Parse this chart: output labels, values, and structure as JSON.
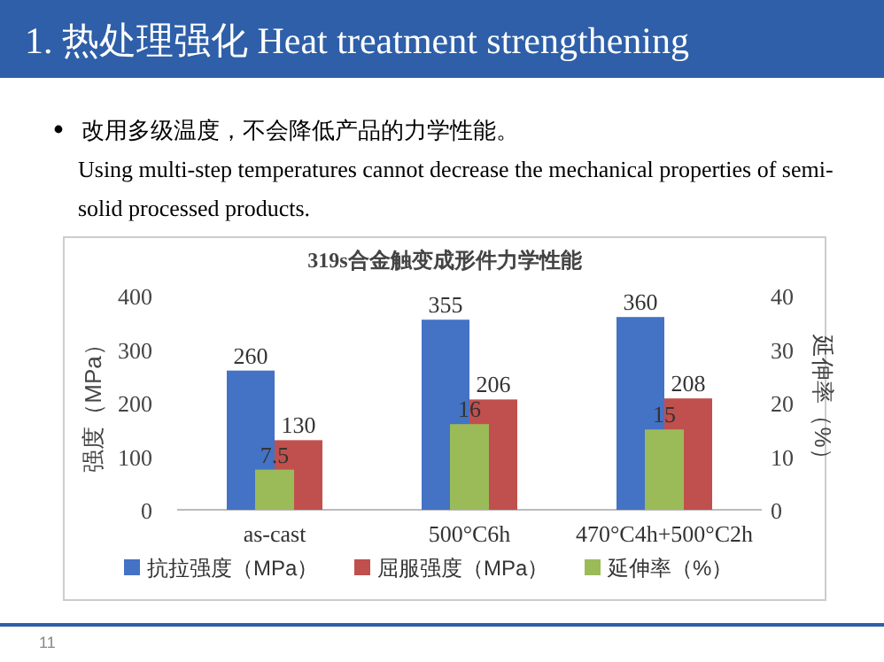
{
  "chart_data": {
    "type": "bar",
    "title": "319s合金触变成形件力学性能",
    "annotations": [
      "1. 热处理强化 Heat treatment strengthening",
      "改用多级温度，不会降低产品的力学性能。",
      "Using multi-step temperatures cannot decrease the mechanical properties of semi-solid processed products.",
      "11"
    ],
    "categories": [
      "as-cast",
      "500°C6h",
      "470°C4h+500°C2h"
    ],
    "series": [
      {
        "name": "抗拉强度（MPa）",
        "color": "#4472c4",
        "values": [
          260,
          355,
          360
        ]
      },
      {
        "name": "屈服强度（MPa）",
        "color": "#c0504d",
        "values": [
          130,
          206,
          208
        ]
      },
      {
        "name": "延伸率（%）",
        "color": "#9bbb59",
        "values": [
          7.5,
          16,
          15
        ],
        "axis": "y2"
      }
    ],
    "ylabel": "强度（MPa）",
    "y2label": "延伸率（%）",
    "ylim": [
      0,
      400
    ],
    "yticks": [
      0,
      100,
      200,
      300,
      400
    ],
    "y2lim": [
      0,
      40
    ],
    "y2ticks": [
      0,
      10,
      20,
      30,
      40
    ],
    "data_labels": true,
    "legend": "bottom"
  }
}
